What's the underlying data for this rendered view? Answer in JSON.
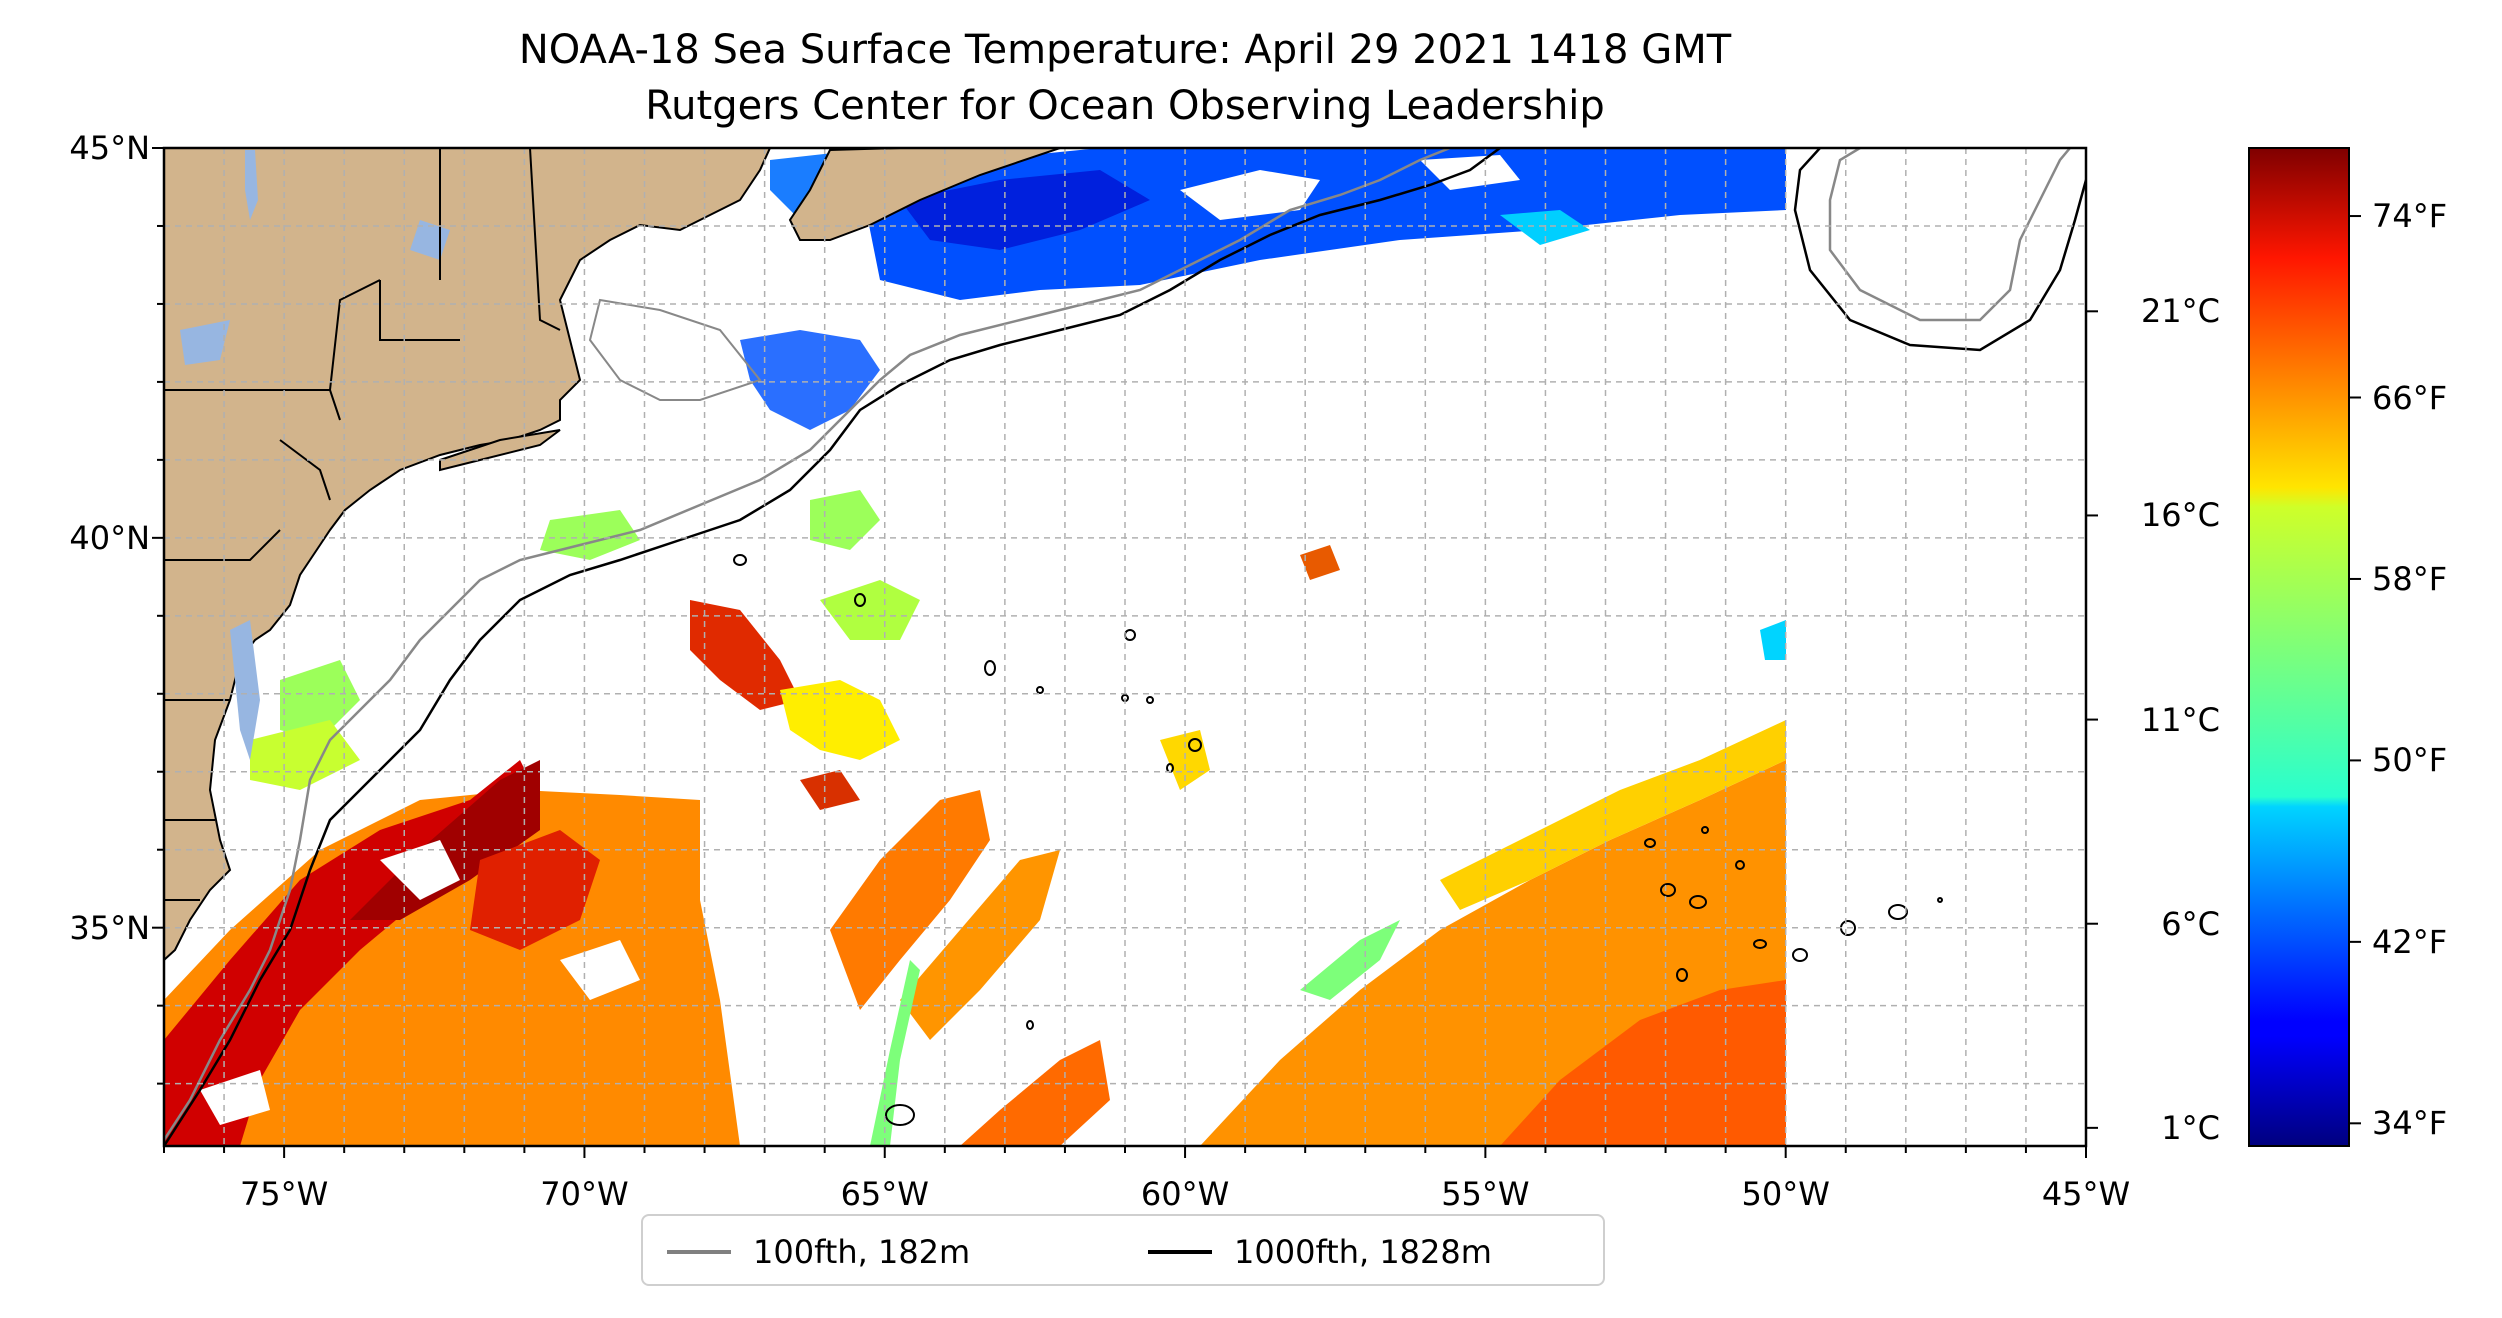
{
  "title": {
    "line1": "NOAA-18 Sea Surface Temperature: April 29 2021 1418 GMT",
    "line2": "Rutgers Center for Ocean Observing Leadership"
  },
  "map": {
    "extent": {
      "lon_min": -77,
      "lon_max": -45,
      "lat_min": 32.2,
      "lat_max": 45
    },
    "gridlines": true,
    "gridline_style": "dashed",
    "land_color": "#d2b48c",
    "lake_color": "#97b6e1",
    "no_data_color": "#ffffff",
    "lat_ticks": [
      {
        "value": 45,
        "label": "45°N"
      },
      {
        "value": 40,
        "label": "40°N"
      },
      {
        "value": 35,
        "label": "35°N"
      }
    ],
    "lon_ticks": [
      {
        "value": -75,
        "label": "75°W"
      },
      {
        "value": -70,
        "label": "70°W"
      },
      {
        "value": -65,
        "label": "65°W"
      },
      {
        "value": -60,
        "label": "60°W"
      },
      {
        "value": -55,
        "label": "55°W"
      },
      {
        "value": -50,
        "label": "50°W"
      },
      {
        "value": -45,
        "label": "45°W"
      }
    ]
  },
  "colorbar": {
    "colormap": "jet",
    "range_f": [
      33,
      77
    ],
    "celsius_ticks": [
      {
        "value_c": 21,
        "label": "21°C"
      },
      {
        "value_c": 16,
        "label": "16°C"
      },
      {
        "value_c": 11,
        "label": "11°C"
      },
      {
        "value_c": 6,
        "label": "6°C"
      },
      {
        "value_c": 1,
        "label": "1°C"
      }
    ],
    "fahrenheit_ticks": [
      {
        "value_f": 74,
        "label": "74°F"
      },
      {
        "value_f": 66,
        "label": "66°F"
      },
      {
        "value_f": 58,
        "label": "58°F"
      },
      {
        "value_f": 50,
        "label": "50°F"
      },
      {
        "value_f": 42,
        "label": "42°F"
      },
      {
        "value_f": 34,
        "label": "34°F"
      }
    ]
  },
  "legend": {
    "placement": "bottom-center",
    "items": [
      {
        "label": "100fth, 182m",
        "color": "#808080"
      },
      {
        "label": "1000fth, 1828m",
        "color": "#000000"
      }
    ]
  }
}
